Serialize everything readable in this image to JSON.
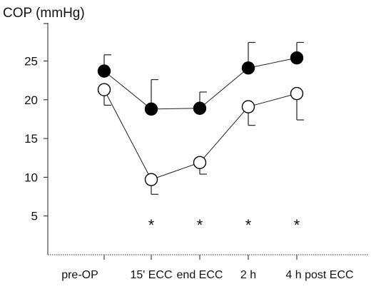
{
  "chart_data": {
    "type": "line",
    "title": "",
    "ylabel": "COP (mmHg)",
    "xlabel": "",
    "categories": [
      "pre-OP",
      "15' ECC",
      "end ECC",
      "2 h",
      "4 h post ECC"
    ],
    "ylim": [
      0,
      30
    ],
    "yticks": [
      5,
      10,
      15,
      20,
      25
    ],
    "grid": false,
    "legend": "none",
    "series": [
      {
        "marker": "filled-circle",
        "color": "#000000",
        "values": [
          23.7,
          18.8,
          18.9,
          24.1,
          25.4
        ],
        "error_upper": [
          2.1,
          3.8,
          2.1,
          3.3,
          2.0
        ]
      },
      {
        "marker": "open-circle",
        "color": "#000000",
        "values": [
          21.3,
          9.7,
          11.9,
          19.1,
          20.8
        ],
        "error_upper": [
          0,
          0,
          0,
          0,
          0
        ],
        "error_lower": [
          2.0,
          1.9,
          1.5,
          2.4,
          3.4
        ]
      }
    ],
    "annotations": [
      "*",
      "*",
      "*",
      "*"
    ],
    "annotation_y": 4.5
  }
}
